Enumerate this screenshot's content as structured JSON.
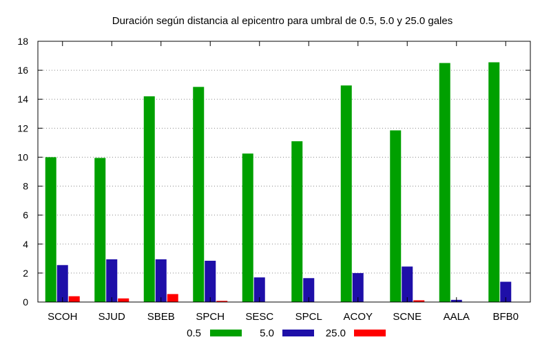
{
  "chart_data": {
    "type": "bar",
    "title": "Duración según distancia al epicentro para umbral de 0.5, 5.0 y 25.0 gales",
    "xlabel": "",
    "ylabel": "",
    "ylim": [
      0,
      18
    ],
    "yticks": [
      0,
      2,
      4,
      6,
      8,
      10,
      12,
      14,
      16,
      18
    ],
    "grid": true,
    "legend_position": "bottom",
    "categories": [
      "SCOH",
      "SJUD",
      "SBEB",
      "SPCH",
      "SESC",
      "SPCL",
      "ACOY",
      "SCNE",
      "AALA",
      "BFB0"
    ],
    "series": [
      {
        "name": "0.5",
        "color": "#00a000",
        "values": [
          10.0,
          9.95,
          14.2,
          14.85,
          10.25,
          11.1,
          14.95,
          11.85,
          16.5,
          16.55
        ]
      },
      {
        "name": "5.0",
        "color": "#1e0fa8",
        "values": [
          2.55,
          2.95,
          2.95,
          2.85,
          1.7,
          1.65,
          2.0,
          2.45,
          0.15,
          1.4
        ]
      },
      {
        "name": "25.0",
        "color": "#ff0000",
        "values": [
          0.4,
          0.25,
          0.55,
          0.08,
          0.0,
          0.0,
          0.0,
          0.12,
          0.0,
          0.0
        ]
      }
    ]
  }
}
